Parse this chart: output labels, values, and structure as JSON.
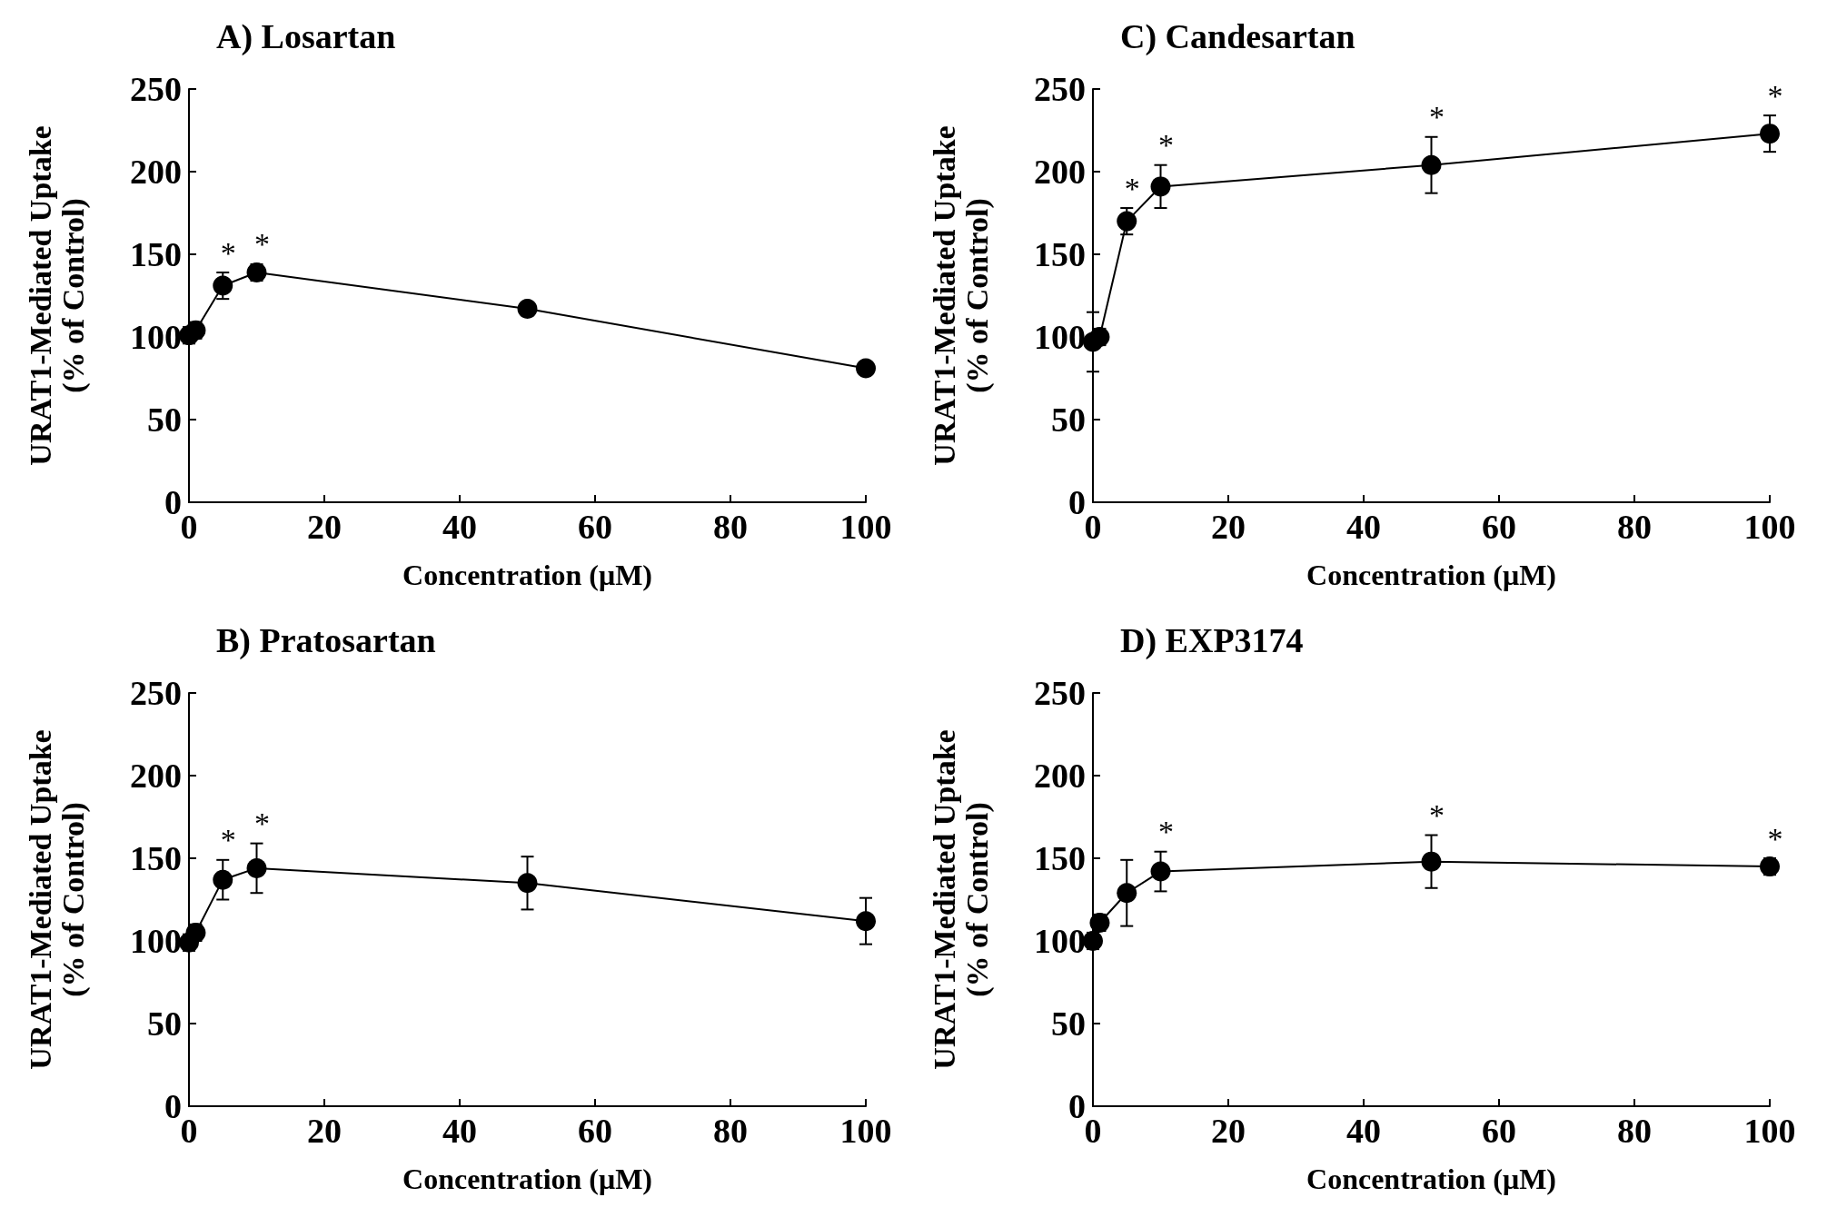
{
  "chart_data": [
    {
      "type": "line",
      "title": "A) Losartan",
      "xlabel": "Concentration (μM)",
      "ylabel": "URAT1-Mediated Uptake\n(% of Control)",
      "xlim": [
        0,
        100
      ],
      "xticks": [
        0,
        20,
        40,
        60,
        80,
        100
      ],
      "ylim": [
        0,
        250
      ],
      "yticks": [
        0,
        50,
        100,
        150,
        200,
        250
      ],
      "grid": false,
      "marker": "circle",
      "line_style": "solid",
      "series": [
        {
          "color": "#000000",
          "x": [
            0,
            1,
            5,
            10,
            50,
            100
          ],
          "values": [
            101,
            104,
            131,
            139,
            117,
            81
          ],
          "errors": [
            5,
            5,
            8,
            5,
            4,
            3
          ]
        }
      ],
      "annotations": [
        {
          "text": "*",
          "x": 5,
          "y": 131
        },
        {
          "text": "*",
          "x": 10,
          "y": 139
        }
      ]
    },
    {
      "type": "line",
      "title": "C) Candesartan",
      "xlabel": "Concentration (μM)",
      "ylabel": "URAT1-Mediated Uptake\n(% of Control)",
      "xlim": [
        0,
        100
      ],
      "xticks": [
        0,
        20,
        40,
        60,
        80,
        100
      ],
      "ylim": [
        0,
        250
      ],
      "yticks": [
        0,
        50,
        100,
        150,
        200,
        250
      ],
      "grid": false,
      "marker": "circle",
      "line_style": "solid",
      "series": [
        {
          "color": "#000000",
          "x": [
            0,
            1,
            5,
            10,
            50,
            100
          ],
          "values": [
            97,
            100,
            170,
            191,
            204,
            223
          ],
          "errors": [
            18,
            5,
            8,
            13,
            17,
            11
          ]
        }
      ],
      "annotations": [
        {
          "text": "*",
          "x": 5,
          "y": 170
        },
        {
          "text": "*",
          "x": 10,
          "y": 191
        },
        {
          "text": "*",
          "x": 50,
          "y": 204
        },
        {
          "text": "*",
          "x": 100,
          "y": 223
        }
      ]
    },
    {
      "type": "line",
      "title": "B) Pratosartan",
      "xlabel": "Concentration (μM)",
      "ylabel": "URAT1-Mediated Uptake\n(% of Control)",
      "xlim": [
        0,
        100
      ],
      "xticks": [
        0,
        20,
        40,
        60,
        80,
        100
      ],
      "ylim": [
        0,
        250
      ],
      "yticks": [
        0,
        50,
        100,
        150,
        200,
        250
      ],
      "grid": false,
      "marker": "circle",
      "line_style": "solid",
      "series": [
        {
          "color": "#000000",
          "x": [
            0,
            1,
            5,
            10,
            50,
            100
          ],
          "values": [
            99,
            105,
            137,
            144,
            135,
            112
          ],
          "errors": [
            5,
            5,
            12,
            15,
            16,
            14
          ]
        }
      ],
      "annotations": [
        {
          "text": "*",
          "x": 5,
          "y": 137
        },
        {
          "text": "*",
          "x": 10,
          "y": 144
        }
      ]
    },
    {
      "type": "line",
      "title": "D) EXP3174",
      "xlabel": "Concentration (μM)",
      "ylabel": "URAT1-Mediated Uptake\n(% of Control)",
      "xlim": [
        0,
        100
      ],
      "xticks": [
        0,
        20,
        40,
        60,
        80,
        100
      ],
      "ylim": [
        0,
        250
      ],
      "yticks": [
        0,
        50,
        100,
        150,
        200,
        250
      ],
      "grid": false,
      "marker": "circle",
      "line_style": "solid",
      "series": [
        {
          "color": "#000000",
          "x": [
            0,
            1,
            5,
            10,
            50,
            100
          ],
          "values": [
            100,
            111,
            129,
            142,
            148,
            145
          ],
          "errors": [
            5,
            5,
            20,
            12,
            16,
            5
          ]
        }
      ],
      "annotations": [
        {
          "text": "*",
          "x": 10,
          "y": 142
        },
        {
          "text": "*",
          "x": 50,
          "y": 148
        },
        {
          "text": "*",
          "x": 100,
          "y": 145
        }
      ]
    }
  ]
}
